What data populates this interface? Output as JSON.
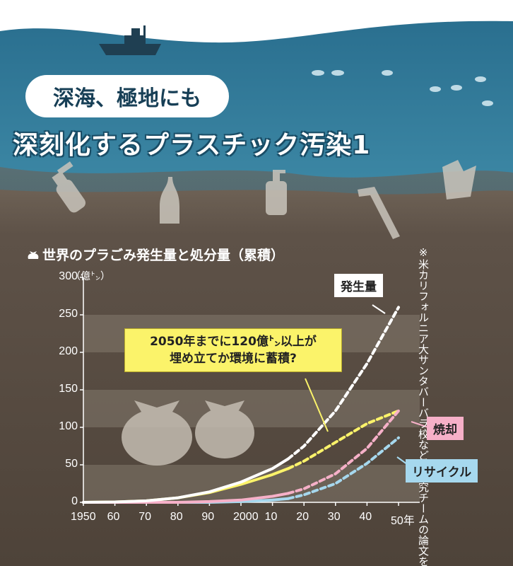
{
  "header": {
    "title_line1": "深海、極地にも",
    "title_line2": "深刻化するプラスチック汚染1"
  },
  "chart_data": {
    "type": "line",
    "title": "世界のプラごみ発生量と処分量（累積）",
    "unit": "（億㌧）",
    "ylim": [
      0,
      300
    ],
    "xlim": [
      1950,
      2050
    ],
    "grid": true,
    "y_ticks": [
      "0",
      "50",
      "100",
      "150",
      "200",
      "250",
      "300"
    ],
    "x_tick_labels": [
      "1950",
      "60",
      "70",
      "80",
      "90",
      "2000",
      "10",
      "20",
      "30",
      "40",
      "50年"
    ],
    "projection_start": 2015,
    "series": [
      {
        "name": "発生量",
        "color": "#ffffff",
        "points": [
          [
            1950,
            0
          ],
          [
            1960,
            0.5
          ],
          [
            1970,
            2
          ],
          [
            1980,
            6
          ],
          [
            1990,
            14
          ],
          [
            2000,
            27
          ],
          [
            2010,
            45
          ],
          [
            2015,
            58
          ],
          [
            2020,
            75
          ],
          [
            2030,
            122
          ],
          [
            2040,
            185
          ],
          [
            2050,
            260
          ]
        ]
      },
      {
        "name": "焼却",
        "color": "#f6b0c8",
        "points": [
          [
            1950,
            0
          ],
          [
            1980,
            0
          ],
          [
            1990,
            1
          ],
          [
            2000,
            3
          ],
          [
            2010,
            8
          ],
          [
            2015,
            12
          ],
          [
            2020,
            18
          ],
          [
            2030,
            38
          ],
          [
            2040,
            72
          ],
          [
            2050,
            122
          ]
        ]
      },
      {
        "name": "リサイクル",
        "color": "#a6d8ee",
        "points": [
          [
            1950,
            0
          ],
          [
            1990,
            0
          ],
          [
            2000,
            1
          ],
          [
            2010,
            3
          ],
          [
            2015,
            5
          ],
          [
            2020,
            10
          ],
          [
            2030,
            25
          ],
          [
            2040,
            52
          ],
          [
            2050,
            86
          ]
        ]
      },
      {
        "name": "",
        "color": "#fbf36a",
        "points": [
          [
            1950,
            0
          ],
          [
            1960,
            0.5
          ],
          [
            1970,
            2
          ],
          [
            1980,
            6
          ],
          [
            1990,
            13
          ],
          [
            2000,
            24
          ],
          [
            2010,
            37
          ],
          [
            2015,
            45
          ],
          [
            2020,
            55
          ],
          [
            2030,
            80
          ],
          [
            2040,
            105
          ],
          [
            2050,
            122
          ]
        ]
      }
    ],
    "annotation": {
      "line1": "2050年までに120億㌧以上が",
      "line2": "埋め立てか環境に蓄積?"
    },
    "note": "※米カリフォルニア大サンタバーバラ校などの研究チームの論文を基に作成。点線は予測値"
  }
}
